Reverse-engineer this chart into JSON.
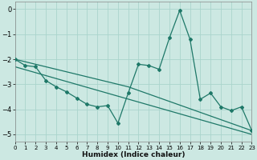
{
  "xlabel": "Humidex (Indice chaleur)",
  "background_color": "#cce8e2",
  "grid_color": "#aad4cc",
  "line_color": "#1e7868",
  "xlim": [
    0,
    23
  ],
  "ylim": [
    -5.3,
    0.3
  ],
  "yticks": [
    0,
    -1,
    -2,
    -3,
    -4,
    -5
  ],
  "xticks": [
    0,
    1,
    2,
    3,
    4,
    5,
    6,
    7,
    8,
    9,
    10,
    11,
    12,
    13,
    14,
    15,
    16,
    17,
    18,
    19,
    20,
    21,
    22,
    23
  ],
  "line1_x": [
    0,
    1,
    2,
    3,
    4,
    5,
    6,
    7,
    8,
    9,
    10,
    11,
    12,
    13,
    14,
    15,
    16,
    17,
    18,
    19,
    20,
    21,
    22,
    23
  ],
  "line1_y": [
    -2.0,
    -2.25,
    -2.3,
    -2.85,
    -3.1,
    -3.3,
    -3.55,
    -3.8,
    -3.9,
    -3.85,
    -4.55,
    -3.35,
    -2.2,
    -2.25,
    -2.4,
    -1.15,
    -0.05,
    -1.2,
    -3.6,
    -3.35,
    -3.9,
    -4.05,
    -3.9,
    -4.85
  ],
  "line2_x": [
    0,
    11,
    23
  ],
  "line2_y": [
    -2.0,
    -3.1,
    -4.85
  ],
  "line3_x": [
    0,
    23
  ],
  "line3_y": [
    -2.3,
    -5.0
  ]
}
